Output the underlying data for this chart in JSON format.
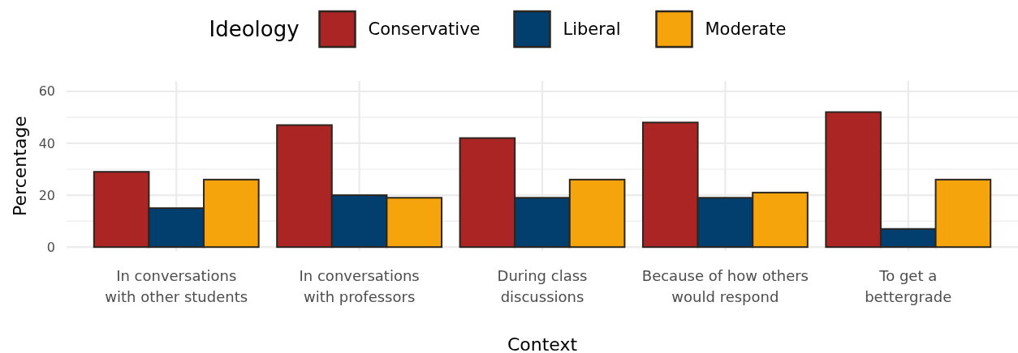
{
  "chart_data": {
    "type": "bar",
    "xlabel": "Context",
    "ylabel": "Percentage",
    "legend_title": "Ideology",
    "legend": "top",
    "categories": [
      "In conversations\nwith other students",
      "In conversations\nwith professors",
      "During class\ndiscussions",
      "Because of how others\nwould respond",
      "To get a\nbettergrade"
    ],
    "series": [
      {
        "name": "Conservative",
        "color": "#ab2524",
        "values": [
          29,
          47,
          42,
          48,
          52
        ]
      },
      {
        "name": "Liberal",
        "color": "#023e6e",
        "values": [
          15,
          20,
          19,
          19,
          7
        ]
      },
      {
        "name": "Moderate",
        "color": "#f5a50b",
        "values": [
          26,
          19,
          26,
          21,
          26
        ]
      }
    ],
    "ylim": [
      -1.5,
      64
    ],
    "yticks": [
      {
        "value": 0,
        "label": "0"
      },
      {
        "value": 10,
        "label": null
      },
      20,
      {
        "value": 30,
        "label": null
      },
      40,
      {
        "value": 50,
        "label": null
      },
      60
    ],
    "grid": true
  }
}
